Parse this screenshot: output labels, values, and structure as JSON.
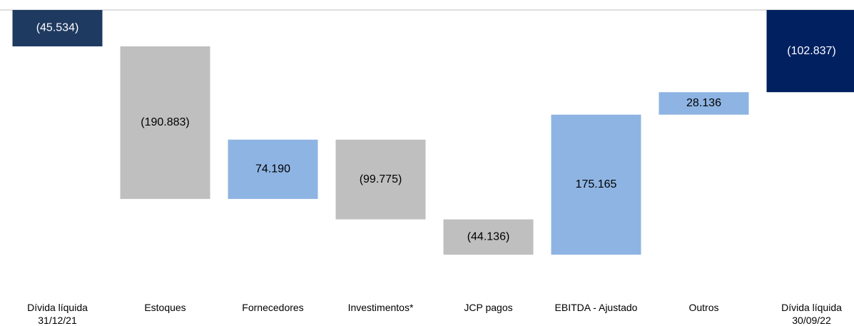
{
  "chart_data": {
    "type": "waterfall",
    "categories": [
      "Dívida líquida\n31/12/21",
      "Estoques",
      "Fornecedores",
      "Investimentos*",
      "JCP pagos",
      "EBITDA - Ajustado",
      "Outros",
      "Dívida líquida\n30/09/22"
    ],
    "values": [
      -45534,
      -190883,
      74190,
      -99775,
      -44136,
      175165,
      28136,
      -102837
    ],
    "value_labels": [
      "(45.534)",
      "(190.883)",
      "74.190",
      "(99.775)",
      "(44.136)",
      "175.165",
      "28.136",
      "(102.837)"
    ],
    "is_total": [
      true,
      false,
      false,
      false,
      false,
      false,
      false,
      true
    ],
    "colors": [
      "#1f3a60",
      "#bfbfbf",
      "#8eb4e3",
      "#bfbfbf",
      "#bfbfbf",
      "#8eb4e3",
      "#8eb4e3",
      "#002060"
    ],
    "label_colors": [
      "#ffffff",
      "#000000",
      "#000000",
      "#000000",
      "#000000",
      "#000000",
      "#000000",
      "#ffffff"
    ]
  }
}
